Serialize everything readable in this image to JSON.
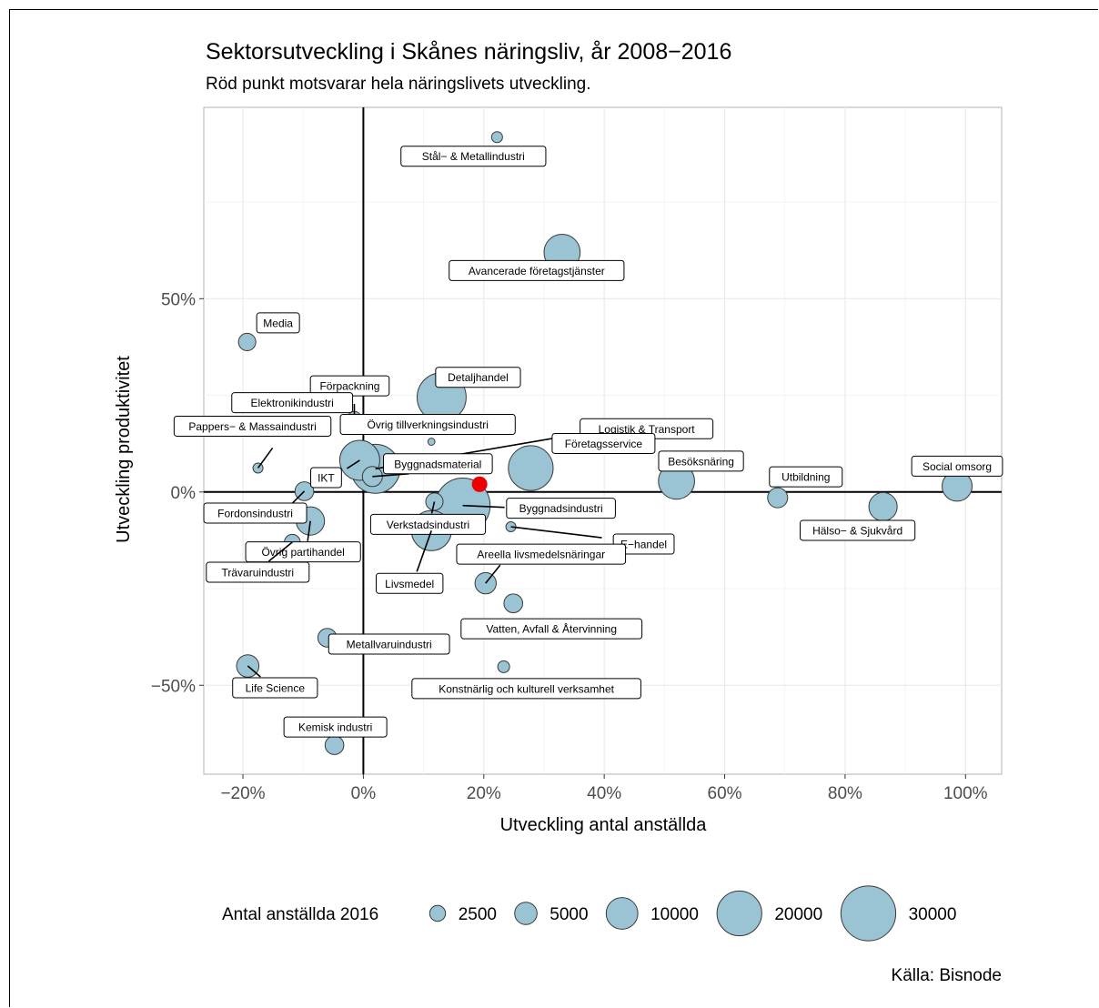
{
  "chart_data": {
    "type": "scatter",
    "title": "Sektorsutveckling i Skånes näringsliv, år 2008−2016",
    "subtitle": "Röd punkt motsvarar hela näringslivets utveckling.",
    "xlabel": "Utveckling antal anställda",
    "ylabel": "Utveckling produktivitet",
    "caption": "Källa: Bisnode",
    "xlim": [
      -0.265,
      1.06
    ],
    "ylim": [
      -0.73,
      0.995
    ],
    "x_ticks": [
      {
        "value": -0.2,
        "label": "−20%"
      },
      {
        "value": 0.0,
        "label": "0%"
      },
      {
        "value": 0.2,
        "label": "20%"
      },
      {
        "value": 0.4,
        "label": "40%"
      },
      {
        "value": 0.6,
        "label": "60%"
      },
      {
        "value": 0.8,
        "label": "80%"
      },
      {
        "value": 1.0,
        "label": "100%"
      }
    ],
    "y_ticks": [
      {
        "value": -0.5,
        "label": "−50%"
      },
      {
        "value": 0.0,
        "label": "0%"
      },
      {
        "value": 0.5,
        "label": "50%"
      }
    ],
    "grid": true,
    "reference_lines": {
      "x": 0,
      "y": 0
    },
    "bubble_color": "#9ac3d3",
    "highlight_color": "#ee0000",
    "points": [
      {
        "name": "Stål− & Metallindustri",
        "x": 0.222,
        "y": 0.918,
        "size": 1200
      },
      {
        "name": "Avancerade företagstjänster",
        "x": 0.33,
        "y": 0.62,
        "size": 13000
      },
      {
        "name": "Media",
        "x": -0.193,
        "y": 0.388,
        "size": 3000
      },
      {
        "name": "Detaljhandel",
        "x": 0.13,
        "y": 0.245,
        "size": 24000
      },
      {
        "name": "Förpackning",
        "x": -0.015,
        "y": 0.19,
        "size": 2000
      },
      {
        "name": "Elektronikindustri",
        "x": -0.02,
        "y": 0.17,
        "size": 1200
      },
      {
        "name": "Övrig tillverkningsindustri",
        "x": 0.113,
        "y": 0.13,
        "size": 500
      },
      {
        "name": "Logistik & Transport",
        "x": 0.02,
        "y": 0.06,
        "size": 24000
      },
      {
        "name": "Pappers− & Massaindustri",
        "x": -0.175,
        "y": 0.062,
        "size": 1000
      },
      {
        "name": "Företagsservice",
        "x": 0.278,
        "y": 0.062,
        "size": 20000
      },
      {
        "name": "IKT",
        "x": -0.006,
        "y": 0.082,
        "size": 16000
      },
      {
        "name": "Byggnadsmaterial",
        "x": 0.015,
        "y": 0.04,
        "size": 4000
      },
      {
        "name": "Besöksnäring",
        "x": 0.52,
        "y": 0.028,
        "size": 13000
      },
      {
        "name": "Utbildning",
        "x": 0.688,
        "y": -0.015,
        "size": 4000
      },
      {
        "name": "Social omsorg",
        "x": 0.986,
        "y": 0.015,
        "size": 9000
      },
      {
        "name": "Hälso− & Sjukvård",
        "x": 0.863,
        "y": -0.038,
        "size": 8000
      },
      {
        "name": "Fordonsindustri",
        "x": -0.098,
        "y": 0.002,
        "size": 3500
      },
      {
        "name": "Byggnadsindustri",
        "x": 0.165,
        "y": -0.035,
        "size": 30000
      },
      {
        "name": "Verkstadsindustri",
        "x": 0.118,
        "y": -0.025,
        "size": 3000
      },
      {
        "name": "Övrig partihandel",
        "x": -0.088,
        "y": -0.075,
        "size": 8000
      },
      {
        "name": "E−handel",
        "x": 0.245,
        "y": -0.09,
        "size": 1000
      },
      {
        "name": "Livsmedel",
        "x": 0.113,
        "y": -0.1,
        "size": 16000
      },
      {
        "name": "Trävaruindustri",
        "x": -0.118,
        "y": -0.13,
        "size": 2500
      },
      {
        "name": "Areella livsmedelsnäringar",
        "x": 0.203,
        "y": -0.236,
        "size": 4500
      },
      {
        "name": "Vatten, Avfall & Återvinning",
        "x": 0.249,
        "y": -0.288,
        "size": 3500
      },
      {
        "name": "Metallvaruindustri",
        "x": -0.06,
        "y": -0.377,
        "size": 3500
      },
      {
        "name": "Konstnärlig och kulturell verksamhet",
        "x": 0.233,
        "y": -0.452,
        "size": 1400
      },
      {
        "name": "Life Science",
        "x": -0.192,
        "y": -0.45,
        "size": 5000
      },
      {
        "name": "Kemisk industri",
        "x": -0.048,
        "y": -0.655,
        "size": 3500
      },
      {
        "name": "Hela näringslivet",
        "x": 0.193,
        "y": 0.02,
        "size": null,
        "highlight": true
      }
    ],
    "legend": {
      "title": "Antal anställda 2016",
      "position": "bottom",
      "entries": [
        {
          "label": "2500",
          "size": 2500
        },
        {
          "label": "5000",
          "size": 5000
        },
        {
          "label": "10000",
          "size": 10000
        },
        {
          "label": "20000",
          "size": 20000
        },
        {
          "label": "30000",
          "size": 30000
        }
      ]
    }
  }
}
